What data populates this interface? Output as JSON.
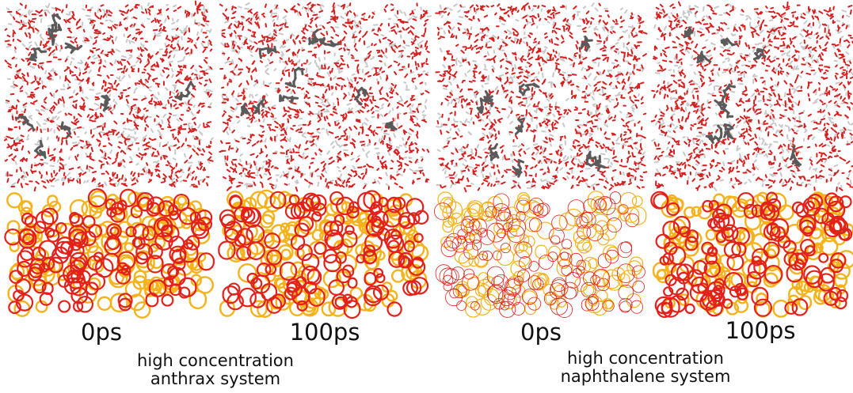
{
  "panels": [
    {
      "label": "0ps"
    },
    {
      "label": "100ps"
    },
    {
      "label": "0ps"
    },
    {
      "label": "100ps"
    }
  ],
  "captions": [
    {
      "lines": [
        "high concentration",
        "anthrax system"
      ]
    },
    {
      "lines": [
        "high concentration",
        "naphthalene system"
      ]
    }
  ]
}
